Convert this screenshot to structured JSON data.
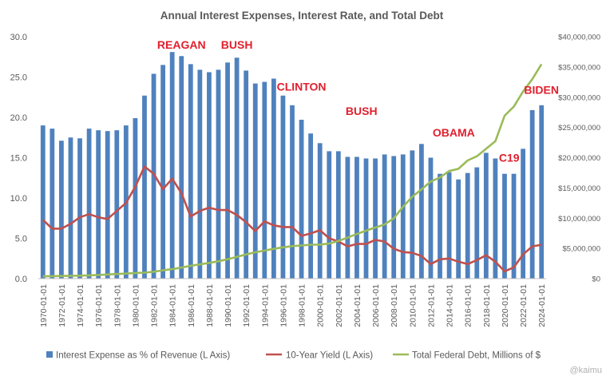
{
  "chart_data": {
    "type": "bar",
    "title": "Annual Interest Expenses, Interest Rate, and Total Debt",
    "x": [
      "1970-01-01",
      "1971-01-01",
      "1972-01-01",
      "1973-01-01",
      "1974-01-01",
      "1975-01-01",
      "1976-01-01",
      "1977-01-01",
      "1978-01-01",
      "1979-01-01",
      "1980-01-01",
      "1981-01-01",
      "1982-01-01",
      "1983-01-01",
      "1984-01-01",
      "1985-01-01",
      "1986-01-01",
      "1987-01-01",
      "1988-01-01",
      "1989-01-01",
      "1990-01-01",
      "1991-01-01",
      "1992-01-01",
      "1993-01-01",
      "1994-01-01",
      "1995-01-01",
      "1996-01-01",
      "1997-01-01",
      "1998-01-01",
      "1999-01-01",
      "2000-01-01",
      "2001-01-01",
      "2002-01-01",
      "2003-01-01",
      "2004-01-01",
      "2005-01-01",
      "2006-01-01",
      "2007-01-01",
      "2008-01-01",
      "2009-01-01",
      "2010-01-01",
      "2011-01-01",
      "2012-01-01",
      "2013-01-01",
      "2014-01-01",
      "2015-01-01",
      "2016-01-01",
      "2017-01-01",
      "2018-01-01",
      "2019-01-01",
      "2020-01-01",
      "2021-01-01",
      "2022-01-01",
      "2023-01-01",
      "2024-01-01"
    ],
    "x_tick_labels": [
      "1970-01-01",
      "1972-01-01",
      "1974-01-01",
      "1976-01-01",
      "1978-01-01",
      "1980-01-01",
      "1982-01-01",
      "1984-01-01",
      "1986-01-01",
      "1988-01-01",
      "1990-01-01",
      "1992-01-01",
      "1994-01-01",
      "1996-01-01",
      "1998-01-01",
      "2000-01-01",
      "2002-01-01",
      "2004-01-01",
      "2006-01-01",
      "2008-01-01",
      "2010-01-01",
      "2012-01-01",
      "2014-01-01",
      "2016-01-01",
      "2018-01-01",
      "2020-01-01",
      "2022-01-01",
      "2024-01-01"
    ],
    "series": [
      {
        "name": "Interest Expense as % of Revenue (L Axis)",
        "type": "bar",
        "axis": "left",
        "color": "#4f81bd",
        "values": [
          19.0,
          18.6,
          17.1,
          17.5,
          17.4,
          18.6,
          18.4,
          18.3,
          18.4,
          19.0,
          19.9,
          22.7,
          25.4,
          26.5,
          28.1,
          27.6,
          26.6,
          25.9,
          25.6,
          25.9,
          26.8,
          27.4,
          25.8,
          24.2,
          24.4,
          24.8,
          22.7,
          21.5,
          19.7,
          18.0,
          16.8,
          15.8,
          15.8,
          15.1,
          15.1,
          14.9,
          14.9,
          15.4,
          15.2,
          15.4,
          15.9,
          16.7,
          15.0,
          13.0,
          13.2,
          12.3,
          13.1,
          13.8,
          15.6,
          14.9,
          13.0,
          13.0,
          16.1,
          20.9,
          21.5
        ]
      },
      {
        "name": "10-Year Yield (L Axis)",
        "type": "line",
        "axis": "left",
        "color": "#c0504d",
        "values": [
          7.3,
          6.2,
          6.2,
          6.8,
          7.6,
          8.0,
          7.6,
          7.4,
          8.4,
          9.4,
          11.4,
          13.9,
          13.0,
          11.1,
          12.4,
          10.6,
          7.7,
          8.4,
          8.8,
          8.5,
          8.5,
          7.9,
          7.0,
          5.9,
          7.1,
          6.6,
          6.4,
          6.4,
          5.3,
          5.6,
          6.0,
          5.0,
          4.6,
          4.0,
          4.3,
          4.3,
          4.8,
          4.6,
          3.7,
          3.3,
          3.2,
          2.8,
          1.8,
          2.4,
          2.5,
          2.1,
          1.8,
          2.3,
          2.9,
          2.1,
          0.9,
          1.4,
          3.0,
          4.0,
          4.2
        ]
      },
      {
        "name": "Total Federal Debt, Millions of $",
        "type": "line",
        "axis": "right",
        "color": "#9bbb59",
        "values": [
          380000,
          410000,
          440000,
          470000,
          490000,
          540000,
          600000,
          680000,
          760000,
          830000,
          910000,
          990000,
          1140000,
          1370000,
          1570000,
          1820000,
          2120000,
          2350000,
          2600000,
          2860000,
          3210000,
          3600000,
          4000000,
          4350000,
          4640000,
          4920000,
          5180000,
          5370000,
          5480000,
          5610000,
          5630000,
          5800000,
          6230000,
          6780000,
          7380000,
          7930000,
          8450000,
          8950000,
          9980000,
          11880000,
          13530000,
          14760000,
          16050000,
          16720000,
          17790000,
          18150000,
          19540000,
          20240000,
          21470000,
          22720000,
          26950000,
          28430000,
          30930000,
          32990000,
          35460000
        ]
      }
    ],
    "y_left": {
      "min": 0,
      "max": 30,
      "ticks": [
        "0.0",
        "5.0",
        "10.0",
        "15.0",
        "20.0",
        "25.0",
        "30.0"
      ]
    },
    "y_right": {
      "min": 0,
      "max": 40000000,
      "ticks": [
        "$0",
        "$5,000,000",
        "$10,000,000",
        "$15,000,000",
        "$20,000,000",
        "$25,000,000",
        "$30,000,000",
        "$35,000,000",
        "$40,000,000"
      ]
    },
    "annotations": [
      {
        "text": "REAGAN",
        "x": "1985-01-01",
        "y": 28.5
      },
      {
        "text": "BUSH",
        "x": "1991-01-01",
        "y": 28.5
      },
      {
        "text": "CLINTON",
        "x": "1998-01-01",
        "y": 23.3
      },
      {
        "text": "BUSH",
        "x": "2004-07-01",
        "y": 20.3
      },
      {
        "text": "OBAMA",
        "x": "2014-07-01",
        "y": 17.6
      },
      {
        "text": "C19",
        "x": "2020-07-01",
        "y": 14.5
      },
      {
        "text": "BIDEN",
        "x": "2024-01-01",
        "y": 22.9
      }
    ],
    "legend_position": "bottom",
    "grid": false
  },
  "credit": "@kaimu"
}
